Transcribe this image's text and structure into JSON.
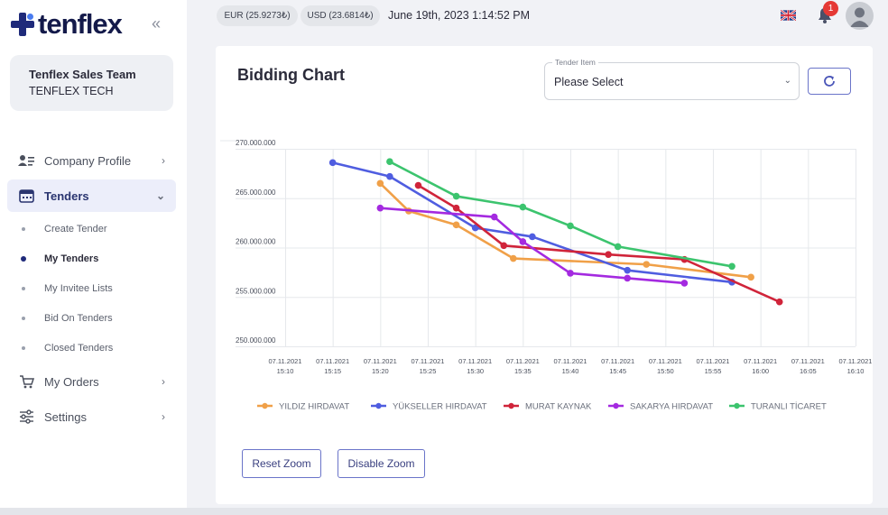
{
  "brand": {
    "name": "tenflex",
    "collapse_icon": "double-chevron-left-icon"
  },
  "team": {
    "name": "Tenflex Sales Team",
    "company": "TENFLEX TECH"
  },
  "nav": [
    {
      "label": "Company Profile",
      "icon": "user-card-icon"
    },
    {
      "label": "Tenders",
      "icon": "calendar-icon",
      "active": true
    },
    {
      "label": "My Orders",
      "icon": "cart-icon"
    },
    {
      "label": "Settings",
      "icon": "sliders-icon"
    }
  ],
  "subnav": [
    {
      "label": "Create Tender"
    },
    {
      "label": "My Tenders",
      "active": true
    },
    {
      "label": "My Invitee Lists"
    },
    {
      "label": "Bid On Tenders"
    },
    {
      "label": "Closed Tenders"
    }
  ],
  "topbar": {
    "eur": "EUR (25.9273₺)",
    "usd": "USD (23.6814₺)",
    "datetime": "June 19th, 2023 1:14:52 PM",
    "notification_count": "1"
  },
  "card": {
    "title": "Bidding Chart",
    "select_label": "Tender Item",
    "select_value": "Please Select",
    "reset_zoom": "Reset Zoom",
    "disable_zoom": "Disable Zoom"
  },
  "chart_data": {
    "type": "line",
    "x_ticks": [
      [
        "07.11.2021",
        "15:10"
      ],
      [
        "07.11.2021",
        "15:15"
      ],
      [
        "07.11.2021",
        "15:20"
      ],
      [
        "07.11.2021",
        "15:25"
      ],
      [
        "07.11.2021",
        "15:30"
      ],
      [
        "07.11.2021",
        "15:35"
      ],
      [
        "07.11.2021",
        "15:40"
      ],
      [
        "07.11.2021",
        "15:45"
      ],
      [
        "07.11.2021",
        "15:50"
      ],
      [
        "07.11.2021",
        "15:55"
      ],
      [
        "07.11.2021",
        "16:00"
      ],
      [
        "07.11.2021",
        "16:05"
      ],
      [
        "07.11.2021",
        "16:10"
      ]
    ],
    "y_ticks": [
      "270.000.000",
      "265.000.000",
      "260.000.000",
      "255.000.000",
      "250.000.000"
    ],
    "ylim": [
      250000000,
      270000000
    ],
    "series": [
      {
        "name": "YILDIZ HIRDAVAT",
        "color": "#f0a048",
        "points": [
          [
            "15:20",
            266500000
          ],
          [
            "15:23",
            263700000
          ],
          [
            "15:28",
            262300000
          ],
          [
            "15:34",
            258900000
          ],
          [
            "15:48",
            258300000
          ],
          [
            "15:59",
            257000000
          ]
        ]
      },
      {
        "name": "YÜKSELLER HIRDAVAT",
        "color": "#4f5de0",
        "points": [
          [
            "15:15",
            268600000
          ],
          [
            "15:21",
            267200000
          ],
          [
            "15:30",
            262000000
          ],
          [
            "15:36",
            261100000
          ],
          [
            "15:46",
            257700000
          ],
          [
            "15:57",
            256500000
          ]
        ]
      },
      {
        "name": "MURAT KAYNAK",
        "color": "#d0243a",
        "points": [
          [
            "15:24",
            266300000
          ],
          [
            "15:28",
            264000000
          ],
          [
            "15:33",
            260200000
          ],
          [
            "15:44",
            259300000
          ],
          [
            "15:52",
            258800000
          ],
          [
            "16:02",
            254500000
          ]
        ]
      },
      {
        "name": "SAKARYA HIRDAVAT",
        "color": "#a42ae0",
        "points": [
          [
            "15:20",
            264000000
          ],
          [
            "15:32",
            263100000
          ],
          [
            "15:35",
            260600000
          ],
          [
            "15:40",
            257400000
          ],
          [
            "15:46",
            256900000
          ],
          [
            "15:52",
            256400000
          ]
        ]
      },
      {
        "name": "TURANLI TİCARET",
        "color": "#3cc46e",
        "points": [
          [
            "15:21",
            268700000
          ],
          [
            "15:28",
            265200000
          ],
          [
            "15:35",
            264100000
          ],
          [
            "15:40",
            262200000
          ],
          [
            "15:45",
            260100000
          ],
          [
            "15:57",
            258100000
          ]
        ]
      }
    ]
  }
}
